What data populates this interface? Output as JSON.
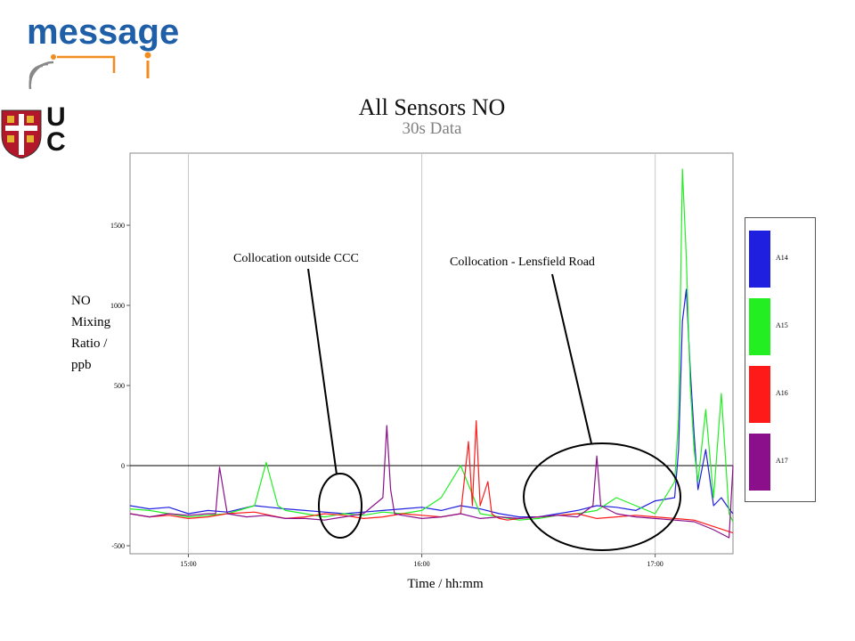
{
  "logo": {
    "text": "message"
  },
  "crest": {
    "text_top": "U",
    "text_bottom": "C"
  },
  "colors": {
    "A14": "#1f1fe0",
    "A15": "#22ee22",
    "A16": "#ff1a1a",
    "A17": "#8b0f8b"
  },
  "chart_data": {
    "type": "line",
    "title": "All Sensors NO",
    "subtitle": "30s Data",
    "xlabel": "Time / hh:mm",
    "ylabel_lines": [
      "NO",
      "Mixing",
      "Ratio /",
      "ppb"
    ],
    "x_ticks": [
      "15:00",
      "16:00",
      "17:00"
    ],
    "x_tick_minutes": [
      0,
      60,
      120
    ],
    "xlim_minutes_from_15_00": [
      -15,
      140
    ],
    "y_ticks": [
      "-500",
      "0",
      "500",
      "1000",
      "1500"
    ],
    "y_tick_values": [
      -500,
      0,
      500,
      1000,
      1500
    ],
    "ylim": [
      -550,
      1950
    ],
    "grid": "vertical at x ticks",
    "legend_position": "right",
    "series": [
      {
        "name": "A14",
        "color": "#1f1fe0",
        "x": [
          -15,
          -10,
          -5,
          0,
          5,
          10,
          17,
          21,
          25,
          30,
          35,
          40,
          45,
          50,
          55,
          60,
          65,
          70,
          75,
          80,
          85,
          90,
          95,
          100,
          105,
          110,
          115,
          120,
          125,
          126,
          127,
          128,
          129,
          130,
          131,
          133,
          135,
          137,
          139,
          140
        ],
        "y": [
          -250,
          -270,
          -260,
          -300,
          -280,
          -290,
          -250,
          -260,
          -270,
          -280,
          -290,
          -300,
          -290,
          -280,
          -270,
          -260,
          -280,
          -250,
          -270,
          -300,
          -320,
          -320,
          -300,
          -280,
          -250,
          -260,
          -280,
          -220,
          -200,
          100,
          900,
          1100,
          600,
          200,
          -150,
          100,
          -250,
          -200,
          -270,
          -300
        ]
      },
      {
        "name": "A15",
        "color": "#22ee22",
        "x": [
          -15,
          -10,
          -5,
          0,
          5,
          10,
          17,
          20,
          23,
          25,
          30,
          35,
          40,
          45,
          50,
          55,
          60,
          65,
          70,
          75,
          80,
          85,
          90,
          95,
          100,
          105,
          110,
          115,
          120,
          125,
          126,
          127,
          128,
          129,
          130,
          131,
          133,
          135,
          137,
          139,
          140
        ],
        "y": [
          -270,
          -280,
          -300,
          -320,
          -310,
          -300,
          -250,
          20,
          -250,
          -280,
          -300,
          -320,
          -300,
          -310,
          -290,
          -300,
          -280,
          -200,
          0,
          -300,
          -320,
          -340,
          -330,
          -310,
          -300,
          -280,
          -200,
          -250,
          -300,
          -100,
          300,
          1850,
          1300,
          500,
          100,
          -100,
          350,
          -200,
          450,
          -300,
          -350
        ]
      },
      {
        "name": "A16",
        "color": "#ff1a1a",
        "x": [
          -15,
          -10,
          -5,
          0,
          5,
          10,
          17,
          21,
          25,
          30,
          35,
          40,
          45,
          50,
          55,
          60,
          65,
          70,
          72,
          73,
          74,
          75,
          77,
          78,
          79,
          80,
          82,
          85,
          90,
          95,
          100,
          105,
          110,
          115,
          120,
          125,
          130,
          135,
          140
        ],
        "y": [
          -300,
          -320,
          -310,
          -330,
          -320,
          -300,
          -290,
          -310,
          -330,
          -320,
          -300,
          -310,
          -330,
          -320,
          -300,
          -310,
          -320,
          -300,
          150,
          -250,
          280,
          -250,
          -100,
          -300,
          -320,
          -330,
          -340,
          -330,
          -320,
          -310,
          -300,
          -330,
          -320,
          -310,
          -320,
          -330,
          -340,
          -380,
          -420
        ]
      },
      {
        "name": "A17",
        "color": "#8b0f8b",
        "x": [
          -15,
          -10,
          -5,
          0,
          5,
          7,
          8,
          10,
          15,
          20,
          25,
          30,
          35,
          40,
          45,
          50,
          51,
          52,
          53,
          55,
          60,
          65,
          70,
          75,
          80,
          85,
          90,
          95,
          100,
          104,
          105,
          106,
          110,
          115,
          120,
          125,
          130,
          135,
          139,
          140
        ],
        "y": [
          -300,
          -320,
          -300,
          -310,
          -300,
          -300,
          -10,
          -300,
          -320,
          -310,
          -330,
          -330,
          -340,
          -320,
          -300,
          -200,
          250,
          -150,
          -300,
          -310,
          -330,
          -320,
          -300,
          -330,
          -320,
          -330,
          -320,
          -310,
          -320,
          -250,
          60,
          -250,
          -300,
          -320,
          -330,
          -340,
          -350,
          -400,
          -450,
          0
        ]
      }
    ]
  },
  "annotations": {
    "ccc_label": "Collocation outside CCC",
    "lensfield_label": "Collocation - Lensfield Road"
  }
}
